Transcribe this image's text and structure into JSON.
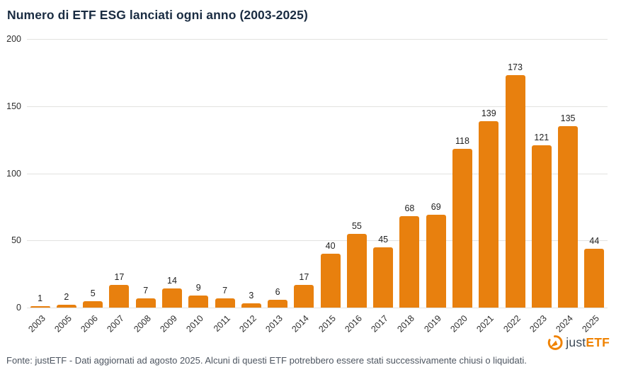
{
  "chart": {
    "title": "Numero di ETF ESG lanciati ogni anno (2003-2025)"
  },
  "chart_data": {
    "type": "bar",
    "title": "Numero di ETF ESG lanciati ogni anno (2003-2025)",
    "categories": [
      "2003",
      "2005",
      "2006",
      "2007",
      "2008",
      "2009",
      "2010",
      "2011",
      "2012",
      "2013",
      "2014",
      "2015",
      "2016",
      "2017",
      "2018",
      "2019",
      "2020",
      "2021",
      "2022",
      "2023",
      "2024",
      "2025"
    ],
    "values": [
      1,
      2,
      5,
      17,
      7,
      14,
      9,
      7,
      3,
      6,
      17,
      40,
      55,
      45,
      68,
      69,
      118,
      139,
      173,
      121,
      135,
      44
    ],
    "xlabel": "",
    "ylabel": "",
    "ylim": [
      0,
      200
    ],
    "yticks": [
      0,
      50,
      100,
      150,
      200
    ],
    "grid": true,
    "legend": "none",
    "value_labels": true,
    "x_label_rotation_deg": -45,
    "bar_color": "#e8800e"
  },
  "logo": {
    "part1": "just",
    "part2": "ETF"
  },
  "footer": {
    "text": "Fonte: justETF - Dati aggiornati ad agosto 2025. Alcuni di questi ETF potrebbero essere stati successivamente chiusi o liquidati."
  },
  "colors": {
    "bar": "#e8800e",
    "title": "#1a2c42",
    "grid": "#e2e2e0",
    "text": "#2e2e2e",
    "footer_text": "#4d5560",
    "logo_orange": "#f08200",
    "logo_dark": "#3d4a57"
  }
}
